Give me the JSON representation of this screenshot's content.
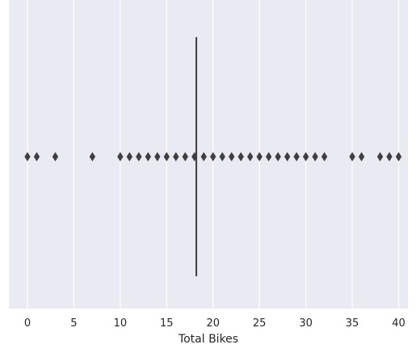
{
  "chart_data": {
    "type": "box",
    "orientation": "horizontal",
    "xlabel": "Total Bikes",
    "ylabel": "",
    "title": "",
    "xlim": [
      -2,
      41
    ],
    "x_ticks": [
      0,
      5,
      10,
      15,
      20,
      25,
      30,
      35,
      40
    ],
    "x_tick_labels": [
      "0",
      "5",
      "10",
      "15",
      "20",
      "25",
      "30",
      "35",
      "40"
    ],
    "grid": true,
    "box": {
      "q1": 18.2,
      "median": 18.2,
      "q3": 18.2,
      "whisker_low": 18.2,
      "whisker_high": 18.2
    },
    "outliers": [
      0,
      1,
      3,
      7,
      10,
      11,
      12,
      13,
      14,
      15,
      16,
      17,
      18,
      19,
      20,
      21,
      22,
      23,
      24,
      25,
      26,
      27,
      28,
      29,
      30,
      31,
      32,
      35,
      36,
      38,
      39,
      40
    ],
    "colors": {
      "background": "#eaeaf2",
      "grid": "#ffffff",
      "box_line": "#3f3f3f",
      "marker": "#3f3f3f"
    }
  }
}
